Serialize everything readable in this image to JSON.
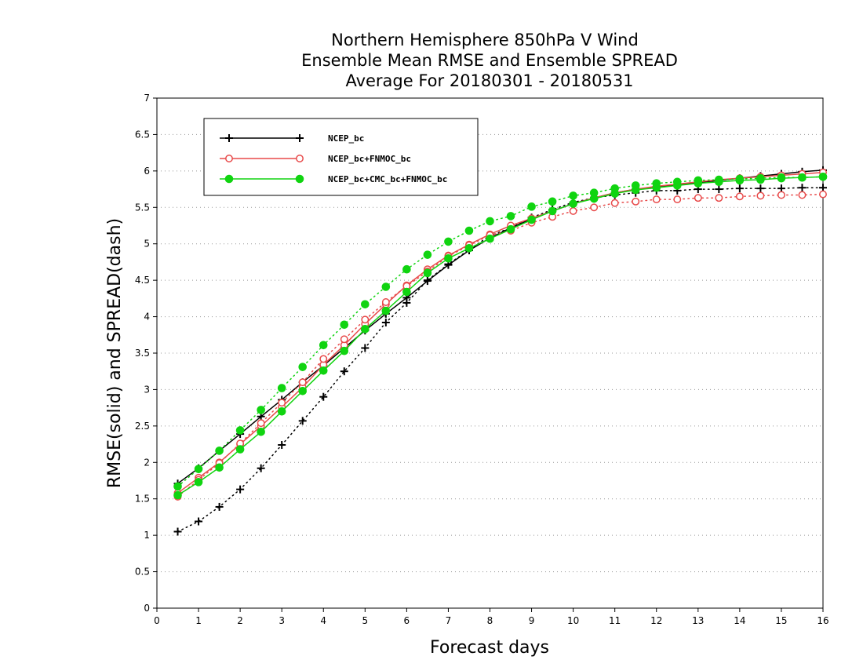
{
  "chart_data": {
    "type": "line",
    "title": [
      "Northern Hemisphere 850hPa V Wind",
      "Ensemble Mean RMSE and Ensemble SPREAD",
      "Average For 20180301 - 20180531"
    ],
    "xlabel": "Forecast days",
    "ylabel": "RMSE(solid) and SPREAD(dash)",
    "xlim": [
      0,
      16
    ],
    "ylim": [
      0,
      7
    ],
    "xticks": [
      0,
      1,
      2,
      3,
      4,
      5,
      6,
      7,
      8,
      9,
      10,
      11,
      12,
      13,
      14,
      15,
      16
    ],
    "yticks": [
      0,
      0.5,
      1,
      1.5,
      2,
      2.5,
      3,
      3.5,
      4,
      4.5,
      5,
      5.5,
      6,
      6.5,
      7
    ],
    "grid": "horizontal dotted",
    "legend_position": "top-left",
    "x": [
      0.5,
      1,
      1.5,
      2,
      2.5,
      3,
      3.5,
      4,
      4.5,
      5,
      5.5,
      6,
      6.5,
      7,
      7.5,
      8,
      8.5,
      9,
      9.5,
      10,
      10.5,
      11,
      11.5,
      12,
      12.5,
      13,
      13.5,
      14,
      14.5,
      15,
      15.5,
      16
    ],
    "series": [
      {
        "name": "NCEP_bc",
        "color": "#000000",
        "marker": "plus",
        "rmse": [
          1.71,
          1.92,
          2.16,
          2.39,
          2.63,
          2.86,
          3.1,
          3.33,
          3.57,
          3.81,
          4.04,
          4.26,
          4.49,
          4.71,
          4.91,
          5.08,
          5.22,
          5.34,
          5.45,
          5.55,
          5.63,
          5.7,
          5.75,
          5.78,
          5.81,
          5.84,
          5.87,
          5.9,
          5.93,
          5.96,
          5.99,
          6.01
        ],
        "spread": [
          1.05,
          1.19,
          1.39,
          1.63,
          1.92,
          2.24,
          2.57,
          2.9,
          3.25,
          3.57,
          3.92,
          4.19,
          4.5,
          4.72,
          4.92,
          5.11,
          5.22,
          5.36,
          5.47,
          5.57,
          5.63,
          5.67,
          5.7,
          5.73,
          5.73,
          5.75,
          5.75,
          5.76,
          5.76,
          5.76,
          5.77,
          5.77
        ]
      },
      {
        "name": "NCEP_bc+FNMOC_bc",
        "color": "#e84a4a",
        "marker": "open-circle",
        "rmse": [
          1.58,
          1.79,
          2.0,
          2.25,
          2.5,
          2.76,
          3.03,
          3.34,
          3.61,
          3.9,
          4.17,
          4.43,
          4.65,
          4.84,
          4.99,
          5.13,
          5.25,
          5.35,
          5.45,
          5.55,
          5.63,
          5.7,
          5.75,
          5.79,
          5.82,
          5.85,
          5.88,
          5.9,
          5.92,
          5.94,
          5.96,
          5.98
        ],
        "spread": [
          1.53,
          1.76,
          1.99,
          2.26,
          2.54,
          2.82,
          3.1,
          3.42,
          3.69,
          3.96,
          4.2,
          4.42,
          4.62,
          4.83,
          4.98,
          5.12,
          5.18,
          5.29,
          5.37,
          5.45,
          5.5,
          5.56,
          5.58,
          5.61,
          5.61,
          5.63,
          5.63,
          5.65,
          5.66,
          5.67,
          5.67,
          5.68
        ]
      },
      {
        "name": "NCEP_bc+CMC_bc+FNMOC_bc",
        "color": "#10d410",
        "marker": "filled-circle",
        "rmse": [
          1.55,
          1.73,
          1.93,
          2.18,
          2.42,
          2.7,
          2.98,
          3.26,
          3.53,
          3.83,
          4.08,
          4.34,
          4.6,
          4.8,
          4.94,
          5.07,
          5.2,
          5.33,
          5.45,
          5.55,
          5.62,
          5.69,
          5.74,
          5.77,
          5.8,
          5.83,
          5.85,
          5.87,
          5.88,
          5.9,
          5.91,
          5.92
        ],
        "spread": [
          1.67,
          1.91,
          2.16,
          2.44,
          2.72,
          3.02,
          3.31,
          3.61,
          3.89,
          4.17,
          4.41,
          4.65,
          4.85,
          5.03,
          5.18,
          5.31,
          5.38,
          5.51,
          5.58,
          5.66,
          5.7,
          5.76,
          5.8,
          5.83,
          5.85,
          5.87,
          5.88,
          5.89,
          5.9,
          5.91,
          5.91,
          5.92
        ]
      }
    ]
  }
}
